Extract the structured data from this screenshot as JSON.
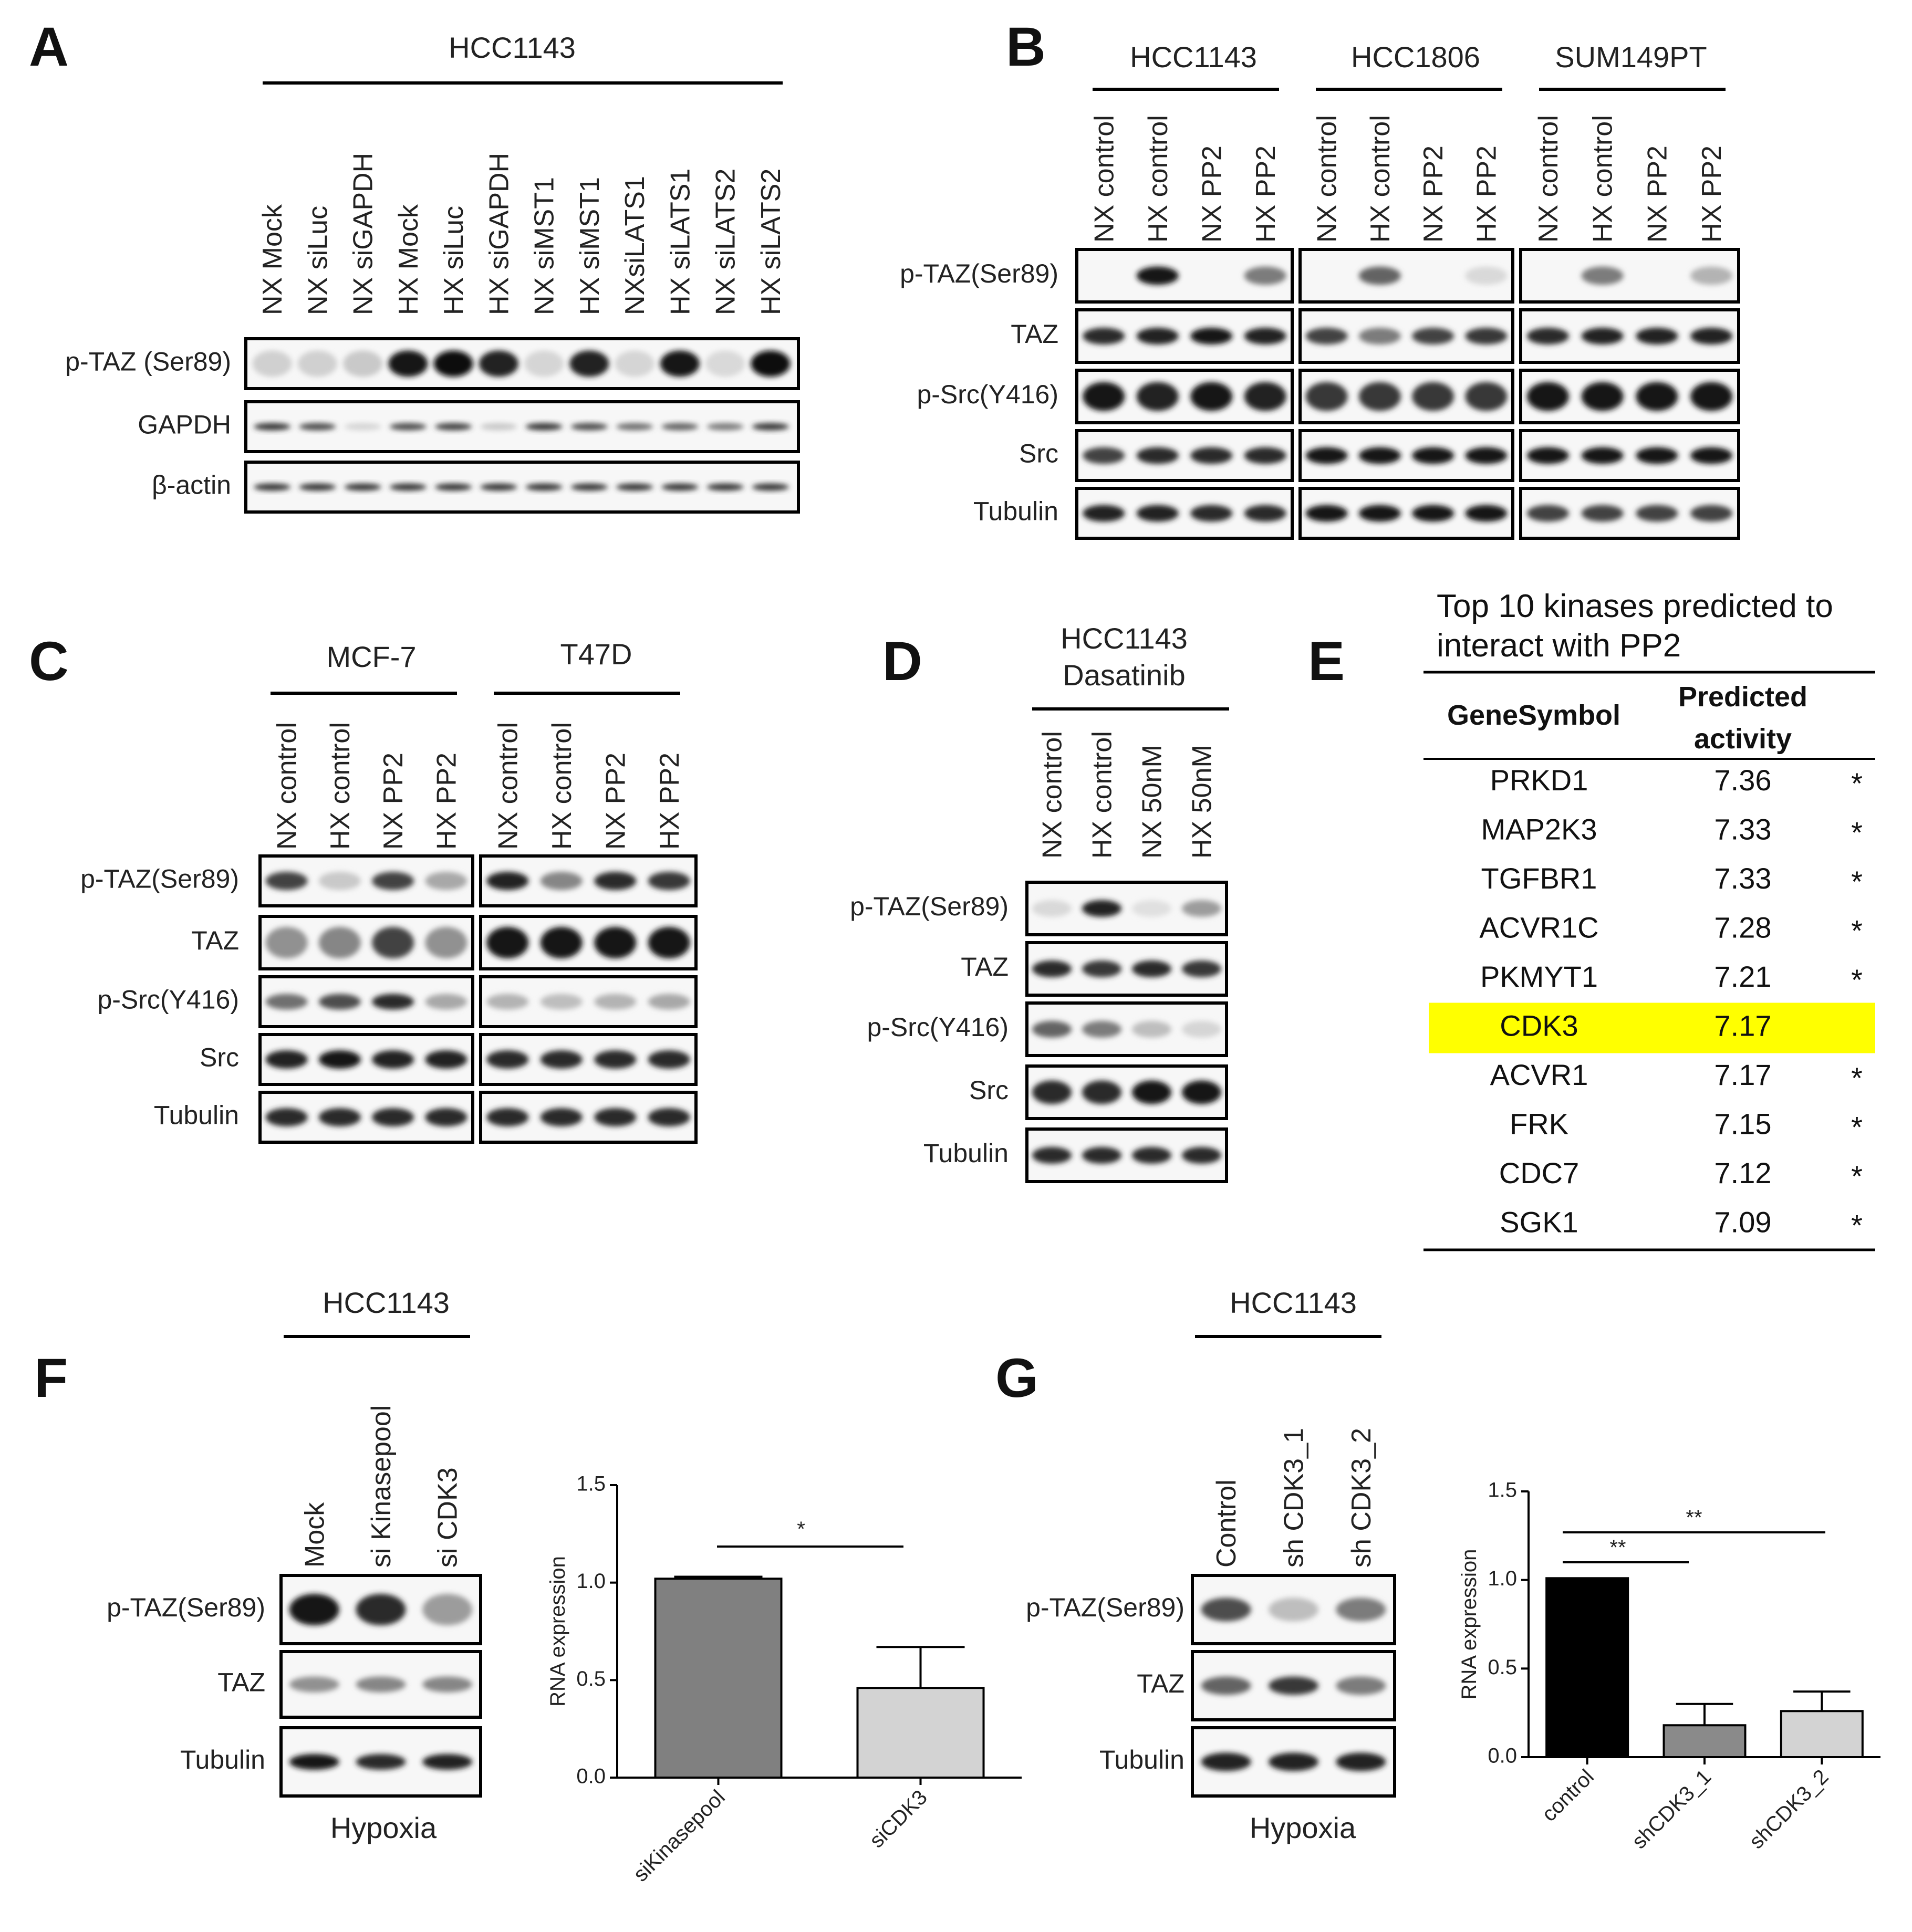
{
  "panels": {
    "A": {
      "letter": "A",
      "cell_line": "HCC1143",
      "lanes": [
        "NX Mock",
        "NX siLuc",
        "NX siGAPDH",
        "HX Mock",
        "HX siLuc",
        "HX siGAPDH",
        "NX siMST1",
        "HX siMST1",
        "NXsiLATS1",
        "HX siLATS1",
        "NX siLATS2",
        "HX siLATS2"
      ],
      "rows": [
        "p-TAZ (Ser89)",
        "GAPDH",
        "β-actin"
      ]
    },
    "B": {
      "letter": "B",
      "groups": [
        {
          "name": "HCC1143",
          "lanes": [
            "NX control",
            "HX control",
            "NX PP2",
            "HX PP2"
          ]
        },
        {
          "name": "HCC1806",
          "lanes": [
            "NX control",
            "HX control",
            "NX PP2",
            "HX PP2"
          ]
        },
        {
          "name": "SUM149PT",
          "lanes": [
            "NX control",
            "HX control",
            "NX PP2",
            "HX PP2"
          ]
        }
      ],
      "rows": [
        "p-TAZ(Ser89)",
        "TAZ",
        "p-Src(Y416)",
        "Src",
        "Tubulin"
      ]
    },
    "C": {
      "letter": "C",
      "groups": [
        {
          "name": "MCF-7",
          "lanes": [
            "NX control",
            "HX control",
            "NX PP2",
            "HX PP2"
          ]
        },
        {
          "name": "T47D",
          "lanes": [
            "NX control",
            "HX control",
            "NX PP2",
            "HX PP2"
          ]
        }
      ],
      "rows": [
        "p-TAZ(Ser89)",
        "TAZ",
        "p-Src(Y416)",
        "Src",
        "Tubulin"
      ]
    },
    "D": {
      "letter": "D",
      "cell_line": "HCC1143",
      "treatment": "Dasatinib",
      "lanes": [
        "NX control",
        "HX control",
        "NX 50nM",
        "HX 50nM"
      ],
      "rows": [
        "p-TAZ(Ser89)",
        "TAZ",
        "p-Src(Y416)",
        "Src",
        "Tubulin"
      ]
    },
    "E": {
      "letter": "E",
      "title_line1": "Top 10 kinases predicted to",
      "title_line2": "interact with PP2",
      "col_gene": "GeneSymbol",
      "col_activity_line1": "Predicted",
      "col_activity_line2": "activity",
      "highlight_color": "#ffff00",
      "rows": [
        {
          "gene": "PRKD1",
          "activity": "7.36",
          "mark": "*"
        },
        {
          "gene": "MAP2K3",
          "activity": "7.33",
          "mark": "*"
        },
        {
          "gene": "TGFBR1",
          "activity": "7.33",
          "mark": "*"
        },
        {
          "gene": "ACVR1C",
          "activity": "7.28",
          "mark": "*"
        },
        {
          "gene": "PKMYT1",
          "activity": "7.21",
          "mark": "*"
        },
        {
          "gene": "CDK3",
          "activity": "7.17",
          "mark": "",
          "highlight": true
        },
        {
          "gene": "ACVR1",
          "activity": "7.17",
          "mark": "*"
        },
        {
          "gene": "FRK",
          "activity": "7.15",
          "mark": "*"
        },
        {
          "gene": "CDC7",
          "activity": "7.12",
          "mark": "*"
        },
        {
          "gene": "SGK1",
          "activity": "7.09",
          "mark": "*"
        }
      ]
    },
    "F": {
      "letter": "F",
      "cell_line": "HCC1143",
      "lanes": [
        "Mock",
        "si Kinasepool",
        "si CDK3"
      ],
      "rows": [
        "p-TAZ(Ser89)",
        "TAZ",
        "Tubulin"
      ],
      "condition": "Hypoxia"
    },
    "G": {
      "letter": "G",
      "cell_line": "HCC1143",
      "lanes": [
        "Control",
        "sh CDK3_1",
        "sh CDK3_2"
      ],
      "rows": [
        "p-TAZ(Ser89)",
        "TAZ",
        "Tubulin"
      ],
      "condition": "Hypoxia"
    }
  },
  "chart_data": [
    {
      "type": "bar",
      "panel": "F",
      "categories": [
        "siKinasepool",
        "siCDK3"
      ],
      "values": [
        1.02,
        0.46
      ],
      "errors": [
        0.01,
        0.21
      ],
      "colors": [
        "#808080",
        "#d3d3d3"
      ],
      "ylabel": "RNA expression",
      "ylim": [
        0,
        1.5
      ],
      "yticks": [
        "0.0",
        "0.5",
        "1.0",
        "1.5"
      ],
      "significance": "*"
    },
    {
      "type": "bar",
      "panel": "G",
      "categories": [
        "control",
        "shCDK3_1",
        "shCDK3_2"
      ],
      "values": [
        1.01,
        0.18,
        0.26
      ],
      "errors": [
        0.0,
        0.12,
        0.11
      ],
      "colors": [
        "#000000",
        "#8a8a8a",
        "#d3d3d3"
      ],
      "ylabel": "RNA expression",
      "ylim": [
        0,
        1.5
      ],
      "yticks": [
        "0.0",
        "0.5",
        "1.0",
        "1.5"
      ],
      "significance": [
        "**",
        "**"
      ]
    }
  ]
}
